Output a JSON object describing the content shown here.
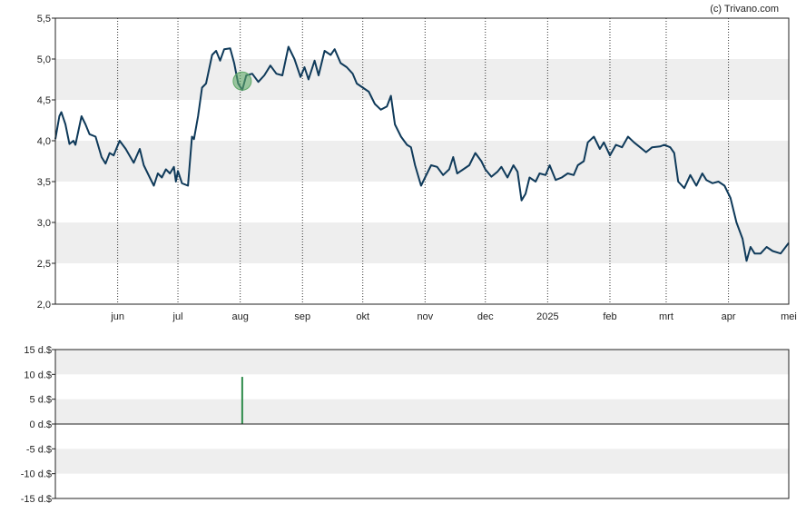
{
  "credit": "(c) Trivano.com",
  "chart_data": [
    {
      "type": "line",
      "ylim": [
        2.0,
        5.5
      ],
      "yticks": [
        2.0,
        2.5,
        3.0,
        3.5,
        4.0,
        4.5,
        5.0,
        5.5
      ],
      "ytick_labels": [
        "2,0",
        "2,5",
        "3,0",
        "3,5",
        "4,0",
        "4,5",
        "5,0",
        "5,5"
      ],
      "xlim": [
        "2024-05-01",
        "2025-05-01"
      ],
      "month_ticks": [
        {
          "date": "2024-06-01",
          "label": "jun"
        },
        {
          "date": "2024-07-01",
          "label": "jul"
        },
        {
          "date": "2024-08-01",
          "label": "aug"
        },
        {
          "date": "2024-09-01",
          "label": "sep"
        },
        {
          "date": "2024-10-01",
          "label": "okt"
        },
        {
          "date": "2024-11-01",
          "label": "nov"
        },
        {
          "date": "2024-12-01",
          "label": "dec"
        },
        {
          "date": "2025-01-01",
          "label": "2025"
        },
        {
          "date": "2025-02-01",
          "label": "feb"
        },
        {
          "date": "2025-03-01",
          "label": "mrt"
        },
        {
          "date": "2025-04-01",
          "label": "apr"
        },
        {
          "date": "2025-05-01",
          "label": "mei"
        }
      ],
      "grid": true,
      "line_color": "#0f3a5a",
      "marker": {
        "date": "2024-08-02",
        "value": 4.73,
        "color": "#5fa868"
      },
      "series": [
        {
          "points": [
            [
              "2024-05-01",
              4.02
            ],
            [
              "2024-05-03",
              4.3
            ],
            [
              "2024-05-04",
              4.35
            ],
            [
              "2024-05-06",
              4.2
            ],
            [
              "2024-05-08",
              3.96
            ],
            [
              "2024-05-10",
              4.0
            ],
            [
              "2024-05-11",
              3.95
            ],
            [
              "2024-05-14",
              4.3
            ],
            [
              "2024-05-16",
              4.2
            ],
            [
              "2024-05-18",
              4.08
            ],
            [
              "2024-05-21",
              4.05
            ],
            [
              "2024-05-24",
              3.8
            ],
            [
              "2024-05-26",
              3.72
            ],
            [
              "2024-05-28",
              3.85
            ],
            [
              "2024-05-30",
              3.82
            ],
            [
              "2024-06-02",
              4.0
            ],
            [
              "2024-06-05",
              3.9
            ],
            [
              "2024-06-09",
              3.73
            ],
            [
              "2024-06-12",
              3.9
            ],
            [
              "2024-06-14",
              3.7
            ],
            [
              "2024-06-17",
              3.55
            ],
            [
              "2024-06-19",
              3.45
            ],
            [
              "2024-06-21",
              3.6
            ],
            [
              "2024-06-23",
              3.55
            ],
            [
              "2024-06-25",
              3.65
            ],
            [
              "2024-06-27",
              3.6
            ],
            [
              "2024-06-29",
              3.68
            ],
            [
              "2024-06-30",
              3.5
            ],
            [
              "2024-07-01",
              3.63
            ],
            [
              "2024-07-03",
              3.48
            ],
            [
              "2024-07-06",
              3.45
            ],
            [
              "2024-07-08",
              4.05
            ],
            [
              "2024-07-09",
              4.02
            ],
            [
              "2024-07-11",
              4.3
            ],
            [
              "2024-07-13",
              4.65
            ],
            [
              "2024-07-15",
              4.7
            ],
            [
              "2024-07-18",
              5.05
            ],
            [
              "2024-07-20",
              5.1
            ],
            [
              "2024-07-22",
              4.98
            ],
            [
              "2024-07-24",
              5.12
            ],
            [
              "2024-07-27",
              5.13
            ],
            [
              "2024-07-29",
              4.95
            ],
            [
              "2024-07-31",
              4.7
            ],
            [
              "2024-08-02",
              4.62
            ],
            [
              "2024-08-04",
              4.8
            ],
            [
              "2024-08-07",
              4.82
            ],
            [
              "2024-08-10",
              4.72
            ],
            [
              "2024-08-13",
              4.8
            ],
            [
              "2024-08-16",
              4.92
            ],
            [
              "2024-08-19",
              4.82
            ],
            [
              "2024-08-22",
              4.8
            ],
            [
              "2024-08-25",
              5.15
            ],
            [
              "2024-08-28",
              5.0
            ],
            [
              "2024-08-31",
              4.78
            ],
            [
              "2024-09-02",
              4.9
            ],
            [
              "2024-09-04",
              4.75
            ],
            [
              "2024-09-07",
              4.98
            ],
            [
              "2024-09-09",
              4.8
            ],
            [
              "2024-09-12",
              5.1
            ],
            [
              "2024-09-15",
              5.05
            ],
            [
              "2024-09-17",
              5.12
            ],
            [
              "2024-09-20",
              4.95
            ],
            [
              "2024-09-23",
              4.9
            ],
            [
              "2024-09-26",
              4.82
            ],
            [
              "2024-09-28",
              4.7
            ],
            [
              "2024-10-01",
              4.65
            ],
            [
              "2024-10-04",
              4.6
            ],
            [
              "2024-10-07",
              4.45
            ],
            [
              "2024-10-10",
              4.38
            ],
            [
              "2024-10-13",
              4.42
            ],
            [
              "2024-10-15",
              4.55
            ],
            [
              "2024-10-17",
              4.2
            ],
            [
              "2024-10-20",
              4.05
            ],
            [
              "2024-10-23",
              3.95
            ],
            [
              "2024-10-25",
              3.92
            ],
            [
              "2024-10-27",
              3.7
            ],
            [
              "2024-10-30",
              3.45
            ],
            [
              "2024-11-02",
              3.6
            ],
            [
              "2024-11-04",
              3.7
            ],
            [
              "2024-11-07",
              3.68
            ],
            [
              "2024-11-10",
              3.58
            ],
            [
              "2024-11-13",
              3.65
            ],
            [
              "2024-11-15",
              3.8
            ],
            [
              "2024-11-17",
              3.6
            ],
            [
              "2024-11-20",
              3.65
            ],
            [
              "2024-11-23",
              3.7
            ],
            [
              "2024-11-26",
              3.85
            ],
            [
              "2024-11-29",
              3.75
            ],
            [
              "2024-12-01",
              3.65
            ],
            [
              "2024-12-04",
              3.56
            ],
            [
              "2024-12-07",
              3.62
            ],
            [
              "2024-12-09",
              3.68
            ],
            [
              "2024-12-12",
              3.55
            ],
            [
              "2024-12-15",
              3.7
            ],
            [
              "2024-12-17",
              3.62
            ],
            [
              "2024-12-19",
              3.27
            ],
            [
              "2024-12-21",
              3.35
            ],
            [
              "2024-12-23",
              3.55
            ],
            [
              "2024-12-26",
              3.5
            ],
            [
              "2024-12-28",
              3.6
            ],
            [
              "2024-12-31",
              3.58
            ],
            [
              "2025-01-02",
              3.7
            ],
            [
              "2025-01-05",
              3.52
            ],
            [
              "2025-01-08",
              3.55
            ],
            [
              "2025-01-11",
              3.6
            ],
            [
              "2025-01-14",
              3.58
            ],
            [
              "2025-01-16",
              3.7
            ],
            [
              "2025-01-19",
              3.75
            ],
            [
              "2025-01-21",
              3.98
            ],
            [
              "2025-01-24",
              4.05
            ],
            [
              "2025-01-27",
              3.9
            ],
            [
              "2025-01-29",
              3.98
            ],
            [
              "2025-02-01",
              3.82
            ],
            [
              "2025-02-04",
              3.95
            ],
            [
              "2025-02-07",
              3.92
            ],
            [
              "2025-02-10",
              4.05
            ],
            [
              "2025-02-13",
              3.98
            ],
            [
              "2025-02-16",
              3.92
            ],
            [
              "2025-02-19",
              3.86
            ],
            [
              "2025-02-22",
              3.92
            ],
            [
              "2025-02-26",
              3.93
            ],
            [
              "2025-02-28",
              3.95
            ],
            [
              "2025-03-03",
              3.92
            ],
            [
              "2025-03-05",
              3.85
            ],
            [
              "2025-03-07",
              3.5
            ],
            [
              "2025-03-10",
              3.42
            ],
            [
              "2025-03-13",
              3.58
            ],
            [
              "2025-03-16",
              3.45
            ],
            [
              "2025-03-19",
              3.6
            ],
            [
              "2025-03-21",
              3.52
            ],
            [
              "2025-03-24",
              3.48
            ],
            [
              "2025-03-27",
              3.5
            ],
            [
              "2025-03-30",
              3.45
            ],
            [
              "2025-04-02",
              3.3
            ],
            [
              "2025-04-05",
              3.0
            ],
            [
              "2025-04-08",
              2.8
            ],
            [
              "2025-04-10",
              2.53
            ],
            [
              "2025-04-12",
              2.7
            ],
            [
              "2025-04-14",
              2.62
            ],
            [
              "2025-04-17",
              2.62
            ],
            [
              "2025-04-20",
              2.7
            ],
            [
              "2025-04-23",
              2.65
            ],
            [
              "2025-04-27",
              2.62
            ],
            [
              "2025-05-01",
              2.75
            ]
          ]
        }
      ]
    },
    {
      "type": "bar",
      "ylim": [
        -15,
        15
      ],
      "yticks": [
        15,
        10,
        5,
        0,
        -5,
        -10,
        -15
      ],
      "ytick_labels": [
        "15 d.$",
        "10 d.$",
        "5 d.$",
        "0 d.$",
        "-5 d.$",
        "-10 d.$",
        "-15 d.$"
      ],
      "xlim": [
        "2024-05-01",
        "2025-05-01"
      ],
      "grid": true,
      "bar_color": "#2e8b4a",
      "bars": [
        {
          "date": "2024-08-02",
          "value": 9.5
        }
      ]
    }
  ]
}
